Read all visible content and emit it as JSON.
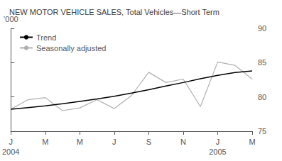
{
  "chart_data": {
    "type": "line",
    "title": "NEW MOTOR VEHICLE SALES, Total Vehicles—Short Term",
    "ylabel": "’000",
    "x": [
      0,
      1,
      2,
      3,
      4,
      5,
      6,
      7,
      8,
      9,
      10,
      11,
      12,
      13,
      14
    ],
    "series": [
      {
        "name": "Trend",
        "color": "#000000",
        "values": [
          78.2,
          78.45,
          78.7,
          79.0,
          79.35,
          79.7,
          80.1,
          80.55,
          81.05,
          81.6,
          82.1,
          82.65,
          83.15,
          83.55,
          83.8
        ]
      },
      {
        "name": "Seasonally adjusted",
        "color": "#b0b0b0",
        "values": [
          78.2,
          79.6,
          79.9,
          78.0,
          78.4,
          79.6,
          78.3,
          80.2,
          83.6,
          82.1,
          82.6,
          78.6,
          85.1,
          84.6,
          82.6
        ]
      }
    ],
    "xlim": [
      0,
      14
    ],
    "xticks": [
      {
        "value": 0,
        "label": "J"
      },
      {
        "value": 2,
        "label": "M"
      },
      {
        "value": 4,
        "label": "M"
      },
      {
        "value": 6,
        "label": "J"
      },
      {
        "value": 8,
        "label": "S"
      },
      {
        "value": 10,
        "label": "N"
      },
      {
        "value": 12,
        "label": "J"
      },
      {
        "value": 14,
        "label": "M"
      }
    ],
    "annotations": [
      {
        "text": "2004",
        "x": 0
      },
      {
        "text": "2005",
        "x": 12
      }
    ],
    "ylim": [
      75,
      90
    ],
    "yticks": [
      75,
      80,
      85,
      90
    ],
    "grid": false,
    "legend": "upper left"
  }
}
